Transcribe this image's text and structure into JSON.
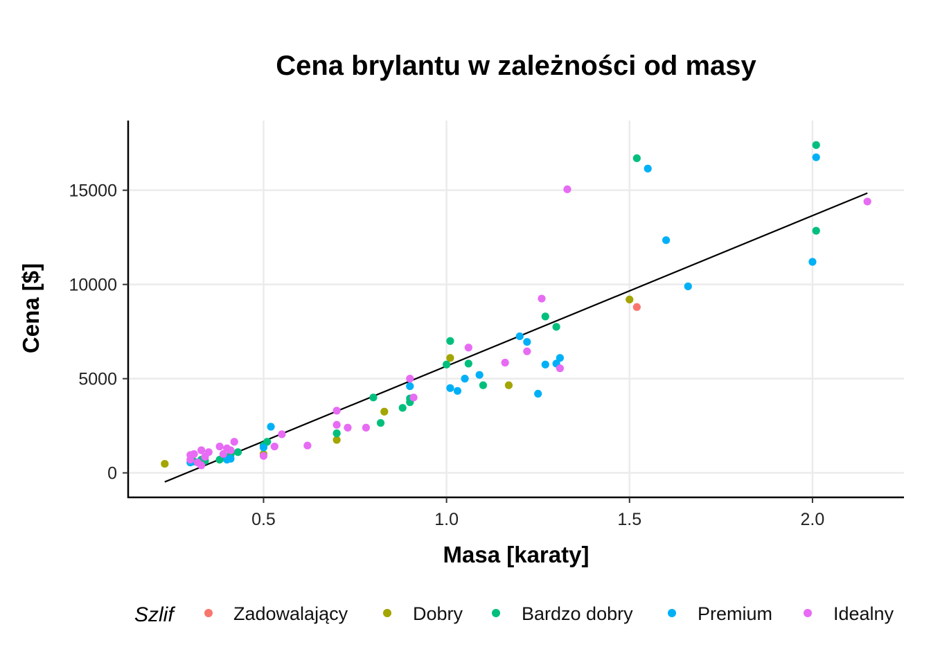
{
  "chart_data": {
    "type": "scatter",
    "title": "Cena brylantu w zależności od masy",
    "xlabel": "Masa [karaty]",
    "ylabel": "Cena [$]",
    "xlim": [
      0.13,
      2.25
    ],
    "ylim": [
      -1300,
      18700
    ],
    "xticks": [
      0.5,
      1.0,
      1.5,
      2.0
    ],
    "xtick_labels": [
      "0.5",
      "1.0",
      "1.5",
      "2.0"
    ],
    "yticks": [
      0,
      5000,
      10000,
      15000
    ],
    "ytick_labels": [
      "0",
      "5000",
      "10000",
      "15000"
    ],
    "grid": true,
    "legend": {
      "title": "Szlif",
      "position": "bottom"
    },
    "trend_line": {
      "x": [
        0.23,
        2.15
      ],
      "y": [
        -480,
        14850
      ]
    },
    "series": [
      {
        "name": "Zadowalający",
        "color": "#F8766D",
        "points": [
          [
            1.52,
            8800
          ]
        ]
      },
      {
        "name": "Dobry",
        "color": "#A3A500",
        "points": [
          [
            0.23,
            480
          ],
          [
            0.5,
            1000
          ],
          [
            0.7,
            1750
          ],
          [
            0.83,
            3250
          ],
          [
            1.01,
            6100
          ],
          [
            1.17,
            4650
          ],
          [
            1.5,
            9200
          ]
        ]
      },
      {
        "name": "Bardzo dobry",
        "color": "#00BF7D",
        "points": [
          [
            0.31,
            600
          ],
          [
            0.33,
            700
          ],
          [
            0.34,
            640
          ],
          [
            0.38,
            700
          ],
          [
            0.41,
            950
          ],
          [
            0.43,
            1100
          ],
          [
            0.5,
            1450
          ],
          [
            0.51,
            1650
          ],
          [
            0.7,
            2100
          ],
          [
            0.8,
            4000
          ],
          [
            0.82,
            2650
          ],
          [
            0.88,
            3450
          ],
          [
            0.9,
            3750
          ],
          [
            0.9,
            3950
          ],
          [
            1.0,
            5750
          ],
          [
            1.01,
            7000
          ],
          [
            1.06,
            5800
          ],
          [
            1.1,
            4650
          ],
          [
            1.27,
            8300
          ],
          [
            1.3,
            7750
          ],
          [
            1.52,
            16700
          ],
          [
            2.01,
            17400
          ],
          [
            2.01,
            12850
          ]
        ]
      },
      {
        "name": "Premium",
        "color": "#00B0F6",
        "points": [
          [
            0.3,
            550
          ],
          [
            0.32,
            560
          ],
          [
            0.4,
            700
          ],
          [
            0.41,
            750
          ],
          [
            0.5,
            1350
          ],
          [
            0.52,
            2450
          ],
          [
            0.9,
            4600
          ],
          [
            1.01,
            4500
          ],
          [
            1.03,
            4350
          ],
          [
            1.05,
            5000
          ],
          [
            1.09,
            5200
          ],
          [
            1.2,
            7250
          ],
          [
            1.22,
            6950
          ],
          [
            1.25,
            4200
          ],
          [
            1.27,
            5750
          ],
          [
            1.3,
            5800
          ],
          [
            1.31,
            6100
          ],
          [
            1.55,
            16150
          ],
          [
            1.6,
            12350
          ],
          [
            1.66,
            9900
          ],
          [
            2.0,
            11200
          ],
          [
            2.01,
            16750
          ]
        ]
      },
      {
        "name": "Idealny",
        "color": "#E76BF3",
        "points": [
          [
            0.3,
            700
          ],
          [
            0.3,
            950
          ],
          [
            0.31,
            1000
          ],
          [
            0.32,
            550
          ],
          [
            0.33,
            1200
          ],
          [
            0.33,
            400
          ],
          [
            0.34,
            850
          ],
          [
            0.35,
            1100
          ],
          [
            0.38,
            1400
          ],
          [
            0.39,
            1000
          ],
          [
            0.4,
            1300
          ],
          [
            0.41,
            1200
          ],
          [
            0.42,
            1650
          ],
          [
            0.5,
            900
          ],
          [
            0.53,
            1400
          ],
          [
            0.55,
            2050
          ],
          [
            0.62,
            1450
          ],
          [
            0.7,
            3300
          ],
          [
            0.7,
            2550
          ],
          [
            0.73,
            2400
          ],
          [
            0.78,
            2400
          ],
          [
            0.9,
            5000
          ],
          [
            0.91,
            4000
          ],
          [
            1.06,
            6650
          ],
          [
            1.16,
            5850
          ],
          [
            1.22,
            6450
          ],
          [
            1.26,
            9250
          ],
          [
            1.31,
            5550
          ],
          [
            1.33,
            15050
          ],
          [
            2.15,
            14400
          ]
        ]
      }
    ]
  }
}
